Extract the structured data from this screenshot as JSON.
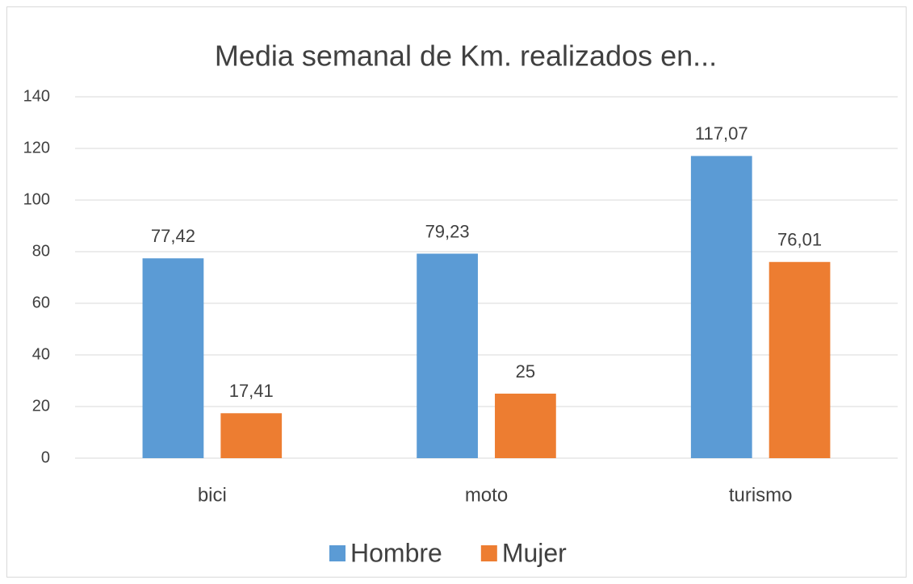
{
  "chart_data": {
    "type": "bar",
    "title": "Media semanal de Km. realizados en...",
    "categories": [
      "bici",
      "moto",
      "turismo"
    ],
    "series": [
      {
        "name": "Hombre",
        "color": "#5b9bd5",
        "values": [
          77.42,
          79.23,
          117.07
        ],
        "value_labels": [
          "77,42",
          "79,23",
          "117,07"
        ]
      },
      {
        "name": "Mujer",
        "color": "#ed7d31",
        "values": [
          17.41,
          25,
          76.01
        ],
        "value_labels": [
          "17,41",
          "25",
          "76,01"
        ]
      }
    ],
    "ylim": [
      0,
      140
    ],
    "yticks": [
      0,
      20,
      40,
      60,
      80,
      100,
      120,
      140
    ],
    "grid": true,
    "legend": "bottom"
  }
}
